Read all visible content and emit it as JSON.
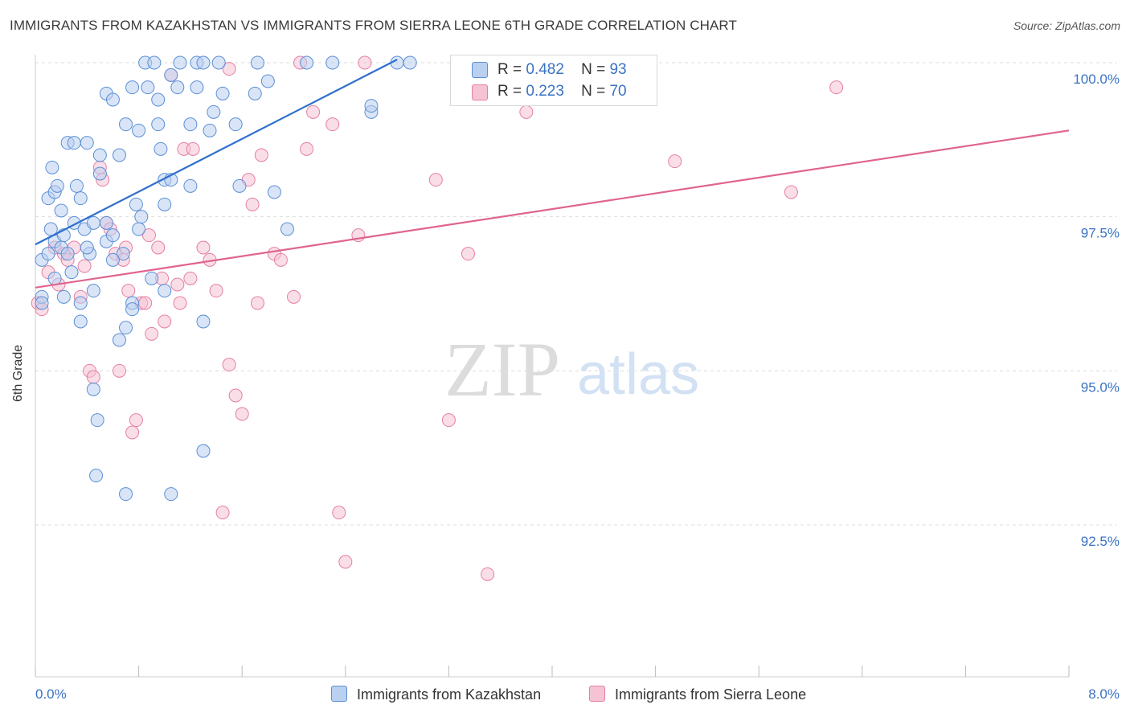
{
  "title": "IMMIGRANTS FROM KAZAKHSTAN VS IMMIGRANTS FROM SIERRA LEONE 6TH GRADE CORRELATION CHART",
  "source": "Source: ZipAtlas.com",
  "watermark": {
    "zip": "ZIP",
    "atlas": "atlas"
  },
  "colors": {
    "blue": "#5b8fd6",
    "blue_fill": "#b9d0f0",
    "pink": "#e57fa3",
    "pink_fill": "#f6c3d4",
    "blue_line": "#2f6fcd",
    "pink_line": "#e0648f",
    "tick_text": "#3a72c4"
  },
  "legend": {
    "rows": [
      {
        "r_label": "R =",
        "r_value": "0.482",
        "n_label": "N =",
        "n_value": "93"
      },
      {
        "r_label": "R =",
        "r_value": "0.223",
        "n_label": "N =",
        "n_value": "70"
      }
    ]
  },
  "chart_data": {
    "type": "scatter",
    "title": "IMMIGRANTS FROM KAZAKHSTAN VS IMMIGRANTS FROM SIERRA LEONE 6TH GRADE CORRELATION CHART",
    "xlabel": "",
    "ylabel": "6th Grade",
    "xlim": [
      0.0,
      8.0
    ],
    "ylim": [
      90.2,
      100.3
    ],
    "x_tick_labels": [
      "0.0%",
      "8.0%"
    ],
    "y_ticks": [
      92.5,
      95.0,
      97.5,
      100.0
    ],
    "y_tick_labels": [
      "92.5%",
      "95.0%",
      "97.5%",
      "100.0%"
    ],
    "grid": true,
    "legend_position": "top-center",
    "series": [
      {
        "name": "Immigrants from Kazakhstan",
        "color": "#5b8fd6",
        "trend": {
          "x": [
            0.0,
            2.8
          ],
          "y": [
            97.05,
            100.05
          ]
        },
        "points": [
          [
            0.05,
            96.8
          ],
          [
            0.05,
            96.2
          ],
          [
            0.05,
            96.1
          ],
          [
            0.1,
            97.8
          ],
          [
            0.12,
            97.3
          ],
          [
            0.15,
            97.9
          ],
          [
            0.15,
            97.1
          ],
          [
            0.13,
            98.3
          ],
          [
            0.17,
            98.0
          ],
          [
            0.2,
            97.6
          ],
          [
            0.22,
            97.2
          ],
          [
            0.25,
            98.7
          ],
          [
            0.3,
            98.7
          ],
          [
            0.3,
            97.4
          ],
          [
            0.32,
            98.0
          ],
          [
            0.35,
            97.8
          ],
          [
            0.38,
            97.3
          ],
          [
            0.4,
            98.7
          ],
          [
            0.42,
            96.9
          ],
          [
            0.45,
            97.4
          ],
          [
            0.5,
            98.5
          ],
          [
            0.5,
            98.2
          ],
          [
            0.55,
            99.5
          ],
          [
            0.55,
            97.1
          ],
          [
            0.6,
            99.4
          ],
          [
            0.6,
            97.2
          ],
          [
            0.65,
            98.5
          ],
          [
            0.68,
            96.9
          ],
          [
            0.7,
            99.0
          ],
          [
            0.75,
            96.1
          ],
          [
            0.75,
            99.6
          ],
          [
            0.78,
            97.7
          ],
          [
            0.8,
            98.9
          ],
          [
            0.8,
            97.3
          ],
          [
            0.82,
            97.5
          ],
          [
            0.85,
            100.0
          ],
          [
            0.87,
            99.6
          ],
          [
            0.9,
            96.5
          ],
          [
            0.92,
            100.0
          ],
          [
            0.95,
            99.0
          ],
          [
            0.97,
            98.6
          ],
          [
            0.95,
            99.4
          ],
          [
            1.0,
            97.7
          ],
          [
            1.0,
            98.1
          ],
          [
            1.05,
            99.8
          ],
          [
            1.05,
            98.1
          ],
          [
            1.1,
            99.6
          ],
          [
            1.12,
            100.0
          ],
          [
            1.2,
            99.0
          ],
          [
            1.2,
            98.0
          ],
          [
            1.25,
            99.6
          ],
          [
            1.25,
            100.0
          ],
          [
            1.3,
            100.0
          ],
          [
            1.35,
            98.9
          ],
          [
            1.38,
            99.2
          ],
          [
            1.42,
            100.0
          ],
          [
            1.45,
            99.5
          ],
          [
            1.55,
            99.0
          ],
          [
            1.58,
            98.0
          ],
          [
            1.7,
            99.5
          ],
          [
            1.72,
            100.0
          ],
          [
            1.8,
            99.7
          ],
          [
            1.85,
            97.9
          ],
          [
            1.95,
            97.3
          ],
          [
            2.1,
            100.0
          ],
          [
            2.3,
            100.0
          ],
          [
            2.6,
            99.2
          ],
          [
            2.6,
            99.3
          ],
          [
            2.8,
            100.0
          ],
          [
            2.9,
            100.0
          ],
          [
            0.45,
            96.3
          ],
          [
            0.65,
            95.5
          ],
          [
            0.7,
            95.7
          ],
          [
            0.75,
            96.0
          ],
          [
            1.0,
            96.3
          ],
          [
            1.3,
            95.8
          ],
          [
            0.35,
            95.8
          ],
          [
            0.45,
            94.7
          ],
          [
            0.48,
            94.2
          ],
          [
            0.47,
            93.3
          ],
          [
            0.7,
            93.0
          ],
          [
            1.05,
            93.0
          ],
          [
            1.3,
            93.7
          ],
          [
            0.2,
            97.0
          ],
          [
            0.25,
            96.9
          ],
          [
            0.22,
            96.2
          ],
          [
            0.35,
            96.1
          ],
          [
            0.15,
            96.5
          ],
          [
            0.6,
            96.8
          ],
          [
            0.55,
            97.4
          ],
          [
            0.4,
            97.0
          ],
          [
            0.28,
            96.6
          ],
          [
            0.1,
            96.9
          ]
        ]
      },
      {
        "name": "Immigrants from Sierra Leone",
        "color": "#e57fa3",
        "trend": {
          "x": [
            0.0,
            8.0
          ],
          "y": [
            96.35,
            98.9
          ]
        },
        "points": [
          [
            0.02,
            96.1
          ],
          [
            0.05,
            96.0
          ],
          [
            0.1,
            96.6
          ],
          [
            0.15,
            97.0
          ],
          [
            0.18,
            96.4
          ],
          [
            0.22,
            96.9
          ],
          [
            0.25,
            96.8
          ],
          [
            0.3,
            97.0
          ],
          [
            0.35,
            96.2
          ],
          [
            0.38,
            96.7
          ],
          [
            0.42,
            95.0
          ],
          [
            0.45,
            94.9
          ],
          [
            0.5,
            98.3
          ],
          [
            0.52,
            98.1
          ],
          [
            0.55,
            97.4
          ],
          [
            0.58,
            97.3
          ],
          [
            0.62,
            96.9
          ],
          [
            0.65,
            95.0
          ],
          [
            0.68,
            96.8
          ],
          [
            0.7,
            97.0
          ],
          [
            0.72,
            96.3
          ],
          [
            0.75,
            94.0
          ],
          [
            0.78,
            94.2
          ],
          [
            0.82,
            96.1
          ],
          [
            0.85,
            96.1
          ],
          [
            0.88,
            97.2
          ],
          [
            0.9,
            95.6
          ],
          [
            0.95,
            97.0
          ],
          [
            0.98,
            96.5
          ],
          [
            1.0,
            95.8
          ],
          [
            1.05,
            99.8
          ],
          [
            1.1,
            96.4
          ],
          [
            1.12,
            96.1
          ],
          [
            1.15,
            98.6
          ],
          [
            1.2,
            96.5
          ],
          [
            1.22,
            98.6
          ],
          [
            1.3,
            97.0
          ],
          [
            1.35,
            96.8
          ],
          [
            1.4,
            96.3
          ],
          [
            1.45,
            92.7
          ],
          [
            1.5,
            95.1
          ],
          [
            1.5,
            99.9
          ],
          [
            1.55,
            94.6
          ],
          [
            1.6,
            94.3
          ],
          [
            1.65,
            98.1
          ],
          [
            1.68,
            97.7
          ],
          [
            1.72,
            96.1
          ],
          [
            1.75,
            98.5
          ],
          [
            1.85,
            96.9
          ],
          [
            1.9,
            96.8
          ],
          [
            2.0,
            96.2
          ],
          [
            2.05,
            100.0
          ],
          [
            2.1,
            98.6
          ],
          [
            2.15,
            99.2
          ],
          [
            2.3,
            99.0
          ],
          [
            2.35,
            92.7
          ],
          [
            2.4,
            91.9
          ],
          [
            2.5,
            97.2
          ],
          [
            2.55,
            100.0
          ],
          [
            3.1,
            98.1
          ],
          [
            3.2,
            94.2
          ],
          [
            3.35,
            96.9
          ],
          [
            3.5,
            91.7
          ],
          [
            3.55,
            100.0
          ],
          [
            3.8,
            99.2
          ],
          [
            4.3,
            100.0
          ],
          [
            4.5,
            100.0
          ],
          [
            4.95,
            98.4
          ],
          [
            5.85,
            97.9
          ],
          [
            6.2,
            99.6
          ]
        ]
      }
    ]
  },
  "bottom_legend": [
    "Immigrants from Kazakhstan",
    "Immigrants from Sierra Leone"
  ]
}
